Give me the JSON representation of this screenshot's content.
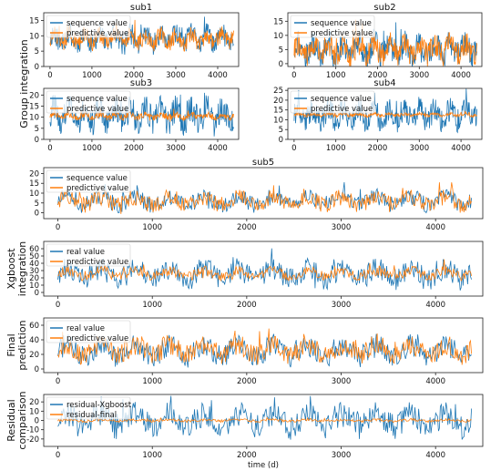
{
  "figure": {
    "group_label": "Group integration",
    "colors": {
      "blue": "#1f77b4",
      "orange": "#ff7f0e"
    }
  },
  "chart_data": [
    {
      "id": "sub1",
      "type": "line",
      "title": "sub1",
      "ylabel": "",
      "xlim": [
        -150,
        4500
      ],
      "ylim": [
        0,
        17.5
      ],
      "xticks": [
        0,
        1000,
        2000,
        3000,
        4000
      ],
      "yticks": [
        0,
        5,
        10,
        15
      ],
      "legend_loc": "upper-left",
      "series": [
        {
          "name": "sequence value",
          "color": "#1f77b4",
          "baseline": 9,
          "amplitude": 5,
          "n": 360,
          "seed": 11
        },
        {
          "name": "predictive value",
          "color": "#ff7f0e",
          "baseline": 9,
          "amplitude": 4,
          "n": 360,
          "seed": 12
        }
      ]
    },
    {
      "id": "sub2",
      "type": "line",
      "title": "sub2",
      "ylabel": "",
      "xlim": [
        -150,
        4500
      ],
      "ylim": [
        -1,
        18
      ],
      "xticks": [
        0,
        1000,
        2000,
        3000,
        4000
      ],
      "yticks": [
        0,
        5,
        10,
        15
      ],
      "legend_loc": "upper-left",
      "series": [
        {
          "name": "sequence value",
          "color": "#1f77b4",
          "baseline": 5,
          "amplitude": 7,
          "n": 360,
          "seed": 21
        },
        {
          "name": "predictive value",
          "color": "#ff7f0e",
          "baseline": 5,
          "amplitude": 6,
          "n": 360,
          "seed": 22
        }
      ]
    },
    {
      "id": "sub3",
      "type": "line",
      "title": "sub3",
      "ylabel": "",
      "xlim": [
        -150,
        4500
      ],
      "ylim": [
        0,
        23
      ],
      "xticks": [
        0,
        1000,
        2000,
        3000,
        4000
      ],
      "yticks": [
        0,
        5,
        10,
        15,
        20
      ],
      "legend_loc": "upper-left",
      "series": [
        {
          "name": "sequence value",
          "color": "#1f77b4",
          "baseline": 11,
          "amplitude": 9,
          "n": 360,
          "seed": 31
        },
        {
          "name": "predictive value",
          "color": "#ff7f0e",
          "baseline": 10.5,
          "amplitude": 2,
          "n": 360,
          "seed": 32
        }
      ]
    },
    {
      "id": "sub4",
      "type": "line",
      "title": "sub4",
      "ylabel": "",
      "xlim": [
        -150,
        4500
      ],
      "ylim": [
        0,
        26
      ],
      "xticks": [
        0,
        1000,
        2000,
        3000,
        4000
      ],
      "yticks": [
        0,
        5,
        10,
        15,
        20,
        25
      ],
      "legend_loc": "upper-left",
      "series": [
        {
          "name": "sequence value",
          "color": "#1f77b4",
          "baseline": 12.5,
          "amplitude": 9,
          "n": 360,
          "seed": 41
        },
        {
          "name": "predictive value",
          "color": "#ff7f0e",
          "baseline": 12.5,
          "amplitude": 1.2,
          "n": 360,
          "seed": 42
        }
      ]
    },
    {
      "id": "sub5",
      "type": "line",
      "title": "sub5",
      "ylabel": "",
      "xlim": [
        -150,
        4500
      ],
      "ylim": [
        -3,
        23
      ],
      "xticks": [
        0,
        1000,
        2000,
        3000,
        4000
      ],
      "yticks": [
        0,
        5,
        10,
        15,
        20
      ],
      "legend_loc": "upper-left",
      "series": [
        {
          "name": "sequence value",
          "color": "#1f77b4",
          "baseline": 6,
          "amplitude": 6,
          "n": 440,
          "seed": 51
        },
        {
          "name": "predictive value",
          "color": "#ff7f0e",
          "baseline": 6,
          "amplitude": 6,
          "n": 440,
          "seed": 52
        }
      ]
    },
    {
      "id": "xgb",
      "type": "line",
      "title": "",
      "ylabel": "Xgboost integration",
      "xlim": [
        -150,
        4500
      ],
      "ylim": [
        -5,
        70
      ],
      "xticks": [
        0,
        1000,
        2000,
        3000,
        4000
      ],
      "yticks": [
        0,
        10,
        20,
        30,
        40,
        50,
        60
      ],
      "legend_loc": "upper-left",
      "series": [
        {
          "name": "real value",
          "color": "#1f77b4",
          "baseline": 25,
          "amplitude": 22,
          "n": 440,
          "seed": 61
        },
        {
          "name": "predictive value",
          "color": "#ff7f0e",
          "baseline": 26,
          "amplitude": 10,
          "n": 440,
          "seed": 62
        }
      ]
    },
    {
      "id": "final",
      "type": "line",
      "title": "",
      "ylabel": "Final prediction",
      "xlim": [
        -150,
        4500
      ],
      "ylim": [
        -5,
        70
      ],
      "xticks": [
        0,
        1000,
        2000,
        3000,
        4000
      ],
      "yticks": [
        0,
        20,
        40,
        60
      ],
      "legend_loc": "upper-left",
      "series": [
        {
          "name": "real value",
          "color": "#1f77b4",
          "baseline": 25,
          "amplitude": 22,
          "n": 440,
          "seed": 71
        },
        {
          "name": "predictive value",
          "color": "#ff7f0e",
          "baseline": 26,
          "amplitude": 20,
          "n": 440,
          "seed": 72
        }
      ]
    },
    {
      "id": "resid",
      "type": "line",
      "title": "",
      "ylabel": "Residual comparison",
      "xlabel": "time (d)",
      "xlim": [
        -150,
        4500
      ],
      "ylim": [
        -28,
        28
      ],
      "xticks": [
        0,
        1000,
        2000,
        3000,
        4000
      ],
      "yticks": [
        -20,
        -10,
        0,
        10,
        20
      ],
      "legend_loc": "upper-left",
      "series": [
        {
          "name": "residual-Xgboost",
          "color": "#1f77b4",
          "baseline": 0,
          "amplitude": 20,
          "n": 440,
          "seed": 81
        },
        {
          "name": "residual-final",
          "color": "#ff7f0e",
          "baseline": 0,
          "amplitude": 2,
          "n": 440,
          "seed": 82
        }
      ]
    }
  ]
}
